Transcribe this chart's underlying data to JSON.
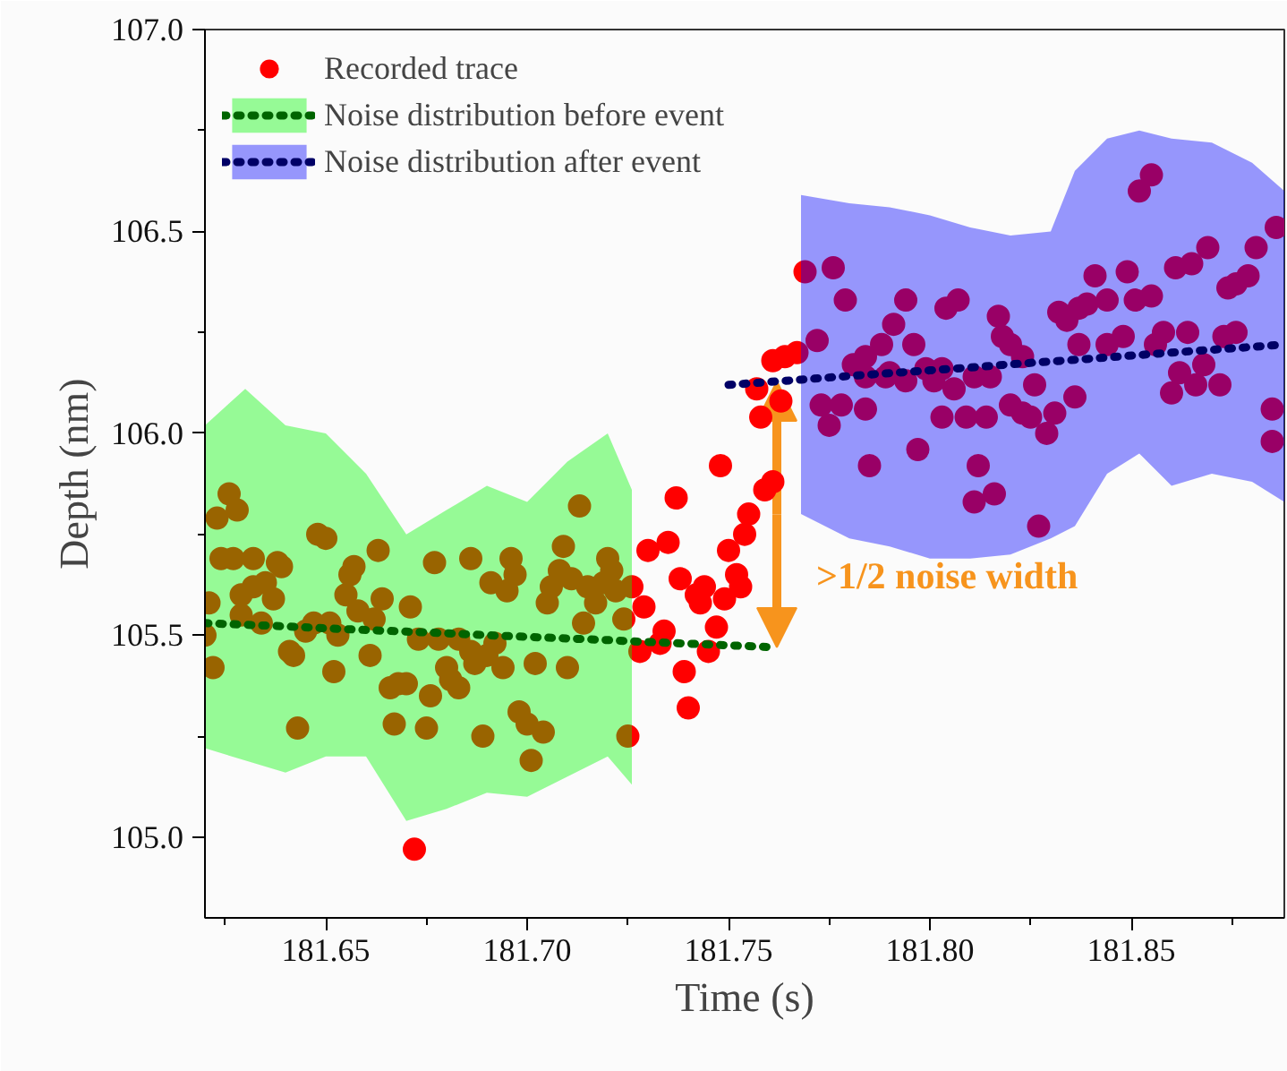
{
  "chart_data": {
    "type": "scatter",
    "xlabel": "Time (s)",
    "ylabel": "Depth (nm)",
    "xlim": [
      181.62,
      181.888
    ],
    "ylim": [
      104.8,
      107.0
    ],
    "xticks": [
      {
        "value": 181.625,
        "label": null
      },
      {
        "value": 181.65,
        "label": "181.65"
      },
      {
        "value": 181.675,
        "label": null
      },
      {
        "value": 181.7,
        "label": "181.70"
      },
      {
        "value": 181.725,
        "label": null
      },
      {
        "value": 181.75,
        "label": "181.75"
      },
      {
        "value": 181.775,
        "label": null
      },
      {
        "value": 181.8,
        "label": "181.80"
      },
      {
        "value": 181.825,
        "label": null
      },
      {
        "value": 181.85,
        "label": "181.85"
      },
      {
        "value": 181.875,
        "label": null
      }
    ],
    "yticks": [
      {
        "value": 105.0,
        "label": "105.0"
      },
      {
        "value": 105.25,
        "label": null
      },
      {
        "value": 105.5,
        "label": "105.5"
      },
      {
        "value": 105.75,
        "label": null
      },
      {
        "value": 106.0,
        "label": "106.0"
      },
      {
        "value": 106.25,
        "label": null
      },
      {
        "value": 106.5,
        "label": "106.5"
      },
      {
        "value": 106.75,
        "label": null
      },
      {
        "value": 107.0,
        "label": "107.0"
      }
    ],
    "grid": false,
    "legend": "top left",
    "marker": "circle",
    "annotations": [
      ">1/2 noise width"
    ],
    "series": [
      {
        "name": "Recorded trace",
        "color": "#ff0000",
        "x": [
          181.626,
          181.623,
          181.628,
          181.624,
          181.627,
          181.632,
          181.621,
          181.629,
          181.632,
          181.635,
          181.637,
          181.638,
          181.639,
          181.629,
          181.634,
          181.62,
          181.622,
          181.641,
          181.642,
          181.643,
          181.648,
          181.65,
          181.645,
          181.647,
          181.651,
          181.653,
          181.652,
          181.655,
          181.656,
          181.657,
          181.658,
          181.662,
          181.661,
          181.663,
          181.664,
          181.671,
          181.666,
          181.668,
          181.67,
          181.667,
          181.675,
          181.676,
          181.673,
          181.677,
          181.678,
          181.68,
          181.681,
          181.683,
          181.683,
          181.686,
          181.687,
          181.69,
          181.692,
          181.686,
          181.691,
          181.695,
          181.696,
          181.697,
          181.694,
          181.689,
          181.698,
          181.7,
          181.704,
          181.701,
          181.702,
          181.705,
          181.706,
          181.708,
          181.709,
          181.711,
          181.713,
          181.714,
          181.71,
          181.715,
          181.717,
          181.719,
          181.72,
          181.721,
          181.722,
          181.724,
          181.725,
          181.672,
          181.761,
          181.764,
          181.767,
          181.757,
          181.758,
          181.763,
          181.748,
          181.737,
          181.761,
          181.759,
          181.755,
          181.754,
          181.75,
          181.735,
          181.73,
          181.752,
          181.753,
          181.738,
          181.742,
          181.744,
          181.749,
          181.743,
          181.726,
          181.729,
          181.747,
          181.734,
          181.733,
          181.728,
          181.745,
          181.739,
          181.74,
          181.769,
          181.776,
          181.779,
          181.772,
          181.781,
          181.784,
          181.788,
          181.791,
          181.794,
          181.796,
          181.79,
          181.794,
          181.799,
          181.803,
          181.773,
          181.775,
          181.778,
          181.784,
          181.785,
          181.797,
          181.801,
          181.803,
          181.806,
          181.809,
          181.811,
          181.814,
          181.815,
          181.804,
          181.807,
          181.812,
          181.811,
          181.816,
          181.817,
          181.818,
          181.82,
          181.823,
          181.82,
          181.823,
          181.825,
          181.829,
          181.831,
          181.826,
          181.836,
          181.832,
          181.834,
          181.837,
          181.839,
          181.841,
          181.844,
          181.837,
          181.844,
          181.848,
          181.849,
          181.851,
          181.855,
          181.852,
          181.855,
          181.827,
          181.856,
          181.858,
          181.86,
          181.862,
          181.864,
          181.866,
          181.868,
          181.872,
          181.861,
          181.865,
          181.869,
          181.874,
          181.876,
          181.879,
          181.881,
          181.873,
          181.876,
          181.886,
          181.885,
          181.885,
          181.784,
          181.789
        ],
        "values": [
          105.85,
          105.79,
          105.81,
          105.69,
          105.69,
          105.69,
          105.58,
          105.6,
          105.62,
          105.63,
          105.59,
          105.68,
          105.67,
          105.55,
          105.53,
          105.5,
          105.42,
          105.46,
          105.45,
          105.27,
          105.75,
          105.74,
          105.51,
          105.53,
          105.53,
          105.5,
          105.41,
          105.6,
          105.65,
          105.67,
          105.56,
          105.54,
          105.45,
          105.71,
          105.59,
          105.57,
          105.37,
          105.38,
          105.38,
          105.28,
          105.27,
          105.35,
          105.49,
          105.68,
          105.49,
          105.42,
          105.39,
          105.37,
          105.49,
          105.46,
          105.43,
          105.45,
          105.48,
          105.69,
          105.63,
          105.61,
          105.69,
          105.65,
          105.42,
          105.25,
          105.31,
          105.28,
          105.26,
          105.19,
          105.43,
          105.58,
          105.62,
          105.66,
          105.72,
          105.64,
          105.82,
          105.53,
          105.42,
          105.62,
          105.58,
          105.63,
          105.69,
          105.66,
          105.61,
          105.54,
          105.25,
          104.97,
          106.18,
          106.19,
          106.2,
          106.11,
          106.04,
          106.08,
          105.92,
          105.84,
          105.88,
          105.86,
          105.8,
          105.75,
          105.71,
          105.73,
          105.71,
          105.65,
          105.62,
          105.64,
          105.6,
          105.62,
          105.59,
          105.58,
          105.62,
          105.57,
          105.52,
          105.51,
          105.48,
          105.46,
          105.46,
          105.41,
          105.32,
          106.4,
          106.41,
          106.33,
          106.23,
          106.17,
          106.19,
          106.22,
          106.27,
          106.33,
          106.22,
          106.15,
          106.13,
          106.16,
          106.16,
          106.07,
          106.02,
          106.07,
          106.06,
          105.92,
          105.96,
          106.13,
          106.04,
          106.11,
          106.04,
          106.14,
          106.04,
          106.14,
          106.31,
          106.33,
          105.92,
          105.83,
          105.85,
          106.29,
          106.24,
          106.22,
          106.19,
          106.07,
          106.05,
          106.04,
          106.0,
          106.05,
          106.12,
          106.09,
          106.3,
          106.28,
          106.31,
          106.32,
          106.39,
          106.33,
          106.22,
          106.22,
          106.24,
          106.4,
          106.33,
          106.34,
          106.6,
          106.64,
          105.77,
          106.22,
          106.25,
          106.1,
          106.15,
          106.25,
          106.12,
          106.17,
          106.12,
          106.41,
          106.42,
          106.46,
          106.36,
          106.37,
          106.39,
          106.46,
          106.24,
          106.25,
          106.51,
          106.06,
          105.98,
          106.14,
          106.14
        ]
      },
      {
        "type": "line",
        "name": "Noise distribution before event",
        "color": "#006400",
        "marker": "none",
        "line_style": "dotted",
        "x": [
          181.62,
          181.63,
          181.64,
          181.65,
          181.66,
          181.67,
          181.68,
          181.69,
          181.7,
          181.71,
          181.72,
          181.726,
          181.762
        ],
        "values": [
          105.53,
          105.526,
          105.522,
          105.517,
          105.513,
          105.509,
          105.505,
          105.5,
          105.496,
          105.492,
          105.488,
          105.485,
          105.47
        ],
        "lower": [
          105.22,
          105.19,
          105.16,
          105.2,
          105.2,
          105.04,
          105.07,
          105.11,
          105.1,
          105.15,
          105.2,
          105.13,
          null
        ],
        "upper": [
          106.02,
          106.11,
          106.02,
          106.0,
          105.9,
          105.75,
          105.81,
          105.87,
          105.83,
          105.93,
          106.0,
          105.86,
          null
        ]
      },
      {
        "type": "line",
        "name": "Noise distribution after event",
        "color": "#000066",
        "marker": "none",
        "line_style": "dotted",
        "x": [
          181.75,
          181.768,
          181.78,
          181.79,
          181.8,
          181.81,
          181.82,
          181.83,
          181.836,
          181.844,
          181.852,
          181.86,
          181.87,
          181.88,
          181.888
        ],
        "values": [
          106.12,
          106.133,
          106.142,
          106.149,
          106.156,
          106.163,
          106.171,
          106.178,
          106.182,
          106.188,
          106.194,
          106.2,
          106.207,
          106.214,
          106.22
        ],
        "lower": [
          null,
          105.8,
          105.74,
          105.72,
          105.69,
          105.69,
          105.7,
          105.74,
          105.77,
          105.9,
          105.95,
          105.87,
          105.9,
          105.88,
          105.83
        ],
        "upper": [
          null,
          106.59,
          106.57,
          106.56,
          106.54,
          106.51,
          106.49,
          106.5,
          106.65,
          106.73,
          106.75,
          106.73,
          106.72,
          106.67,
          106.6
        ]
      }
    ]
  }
}
